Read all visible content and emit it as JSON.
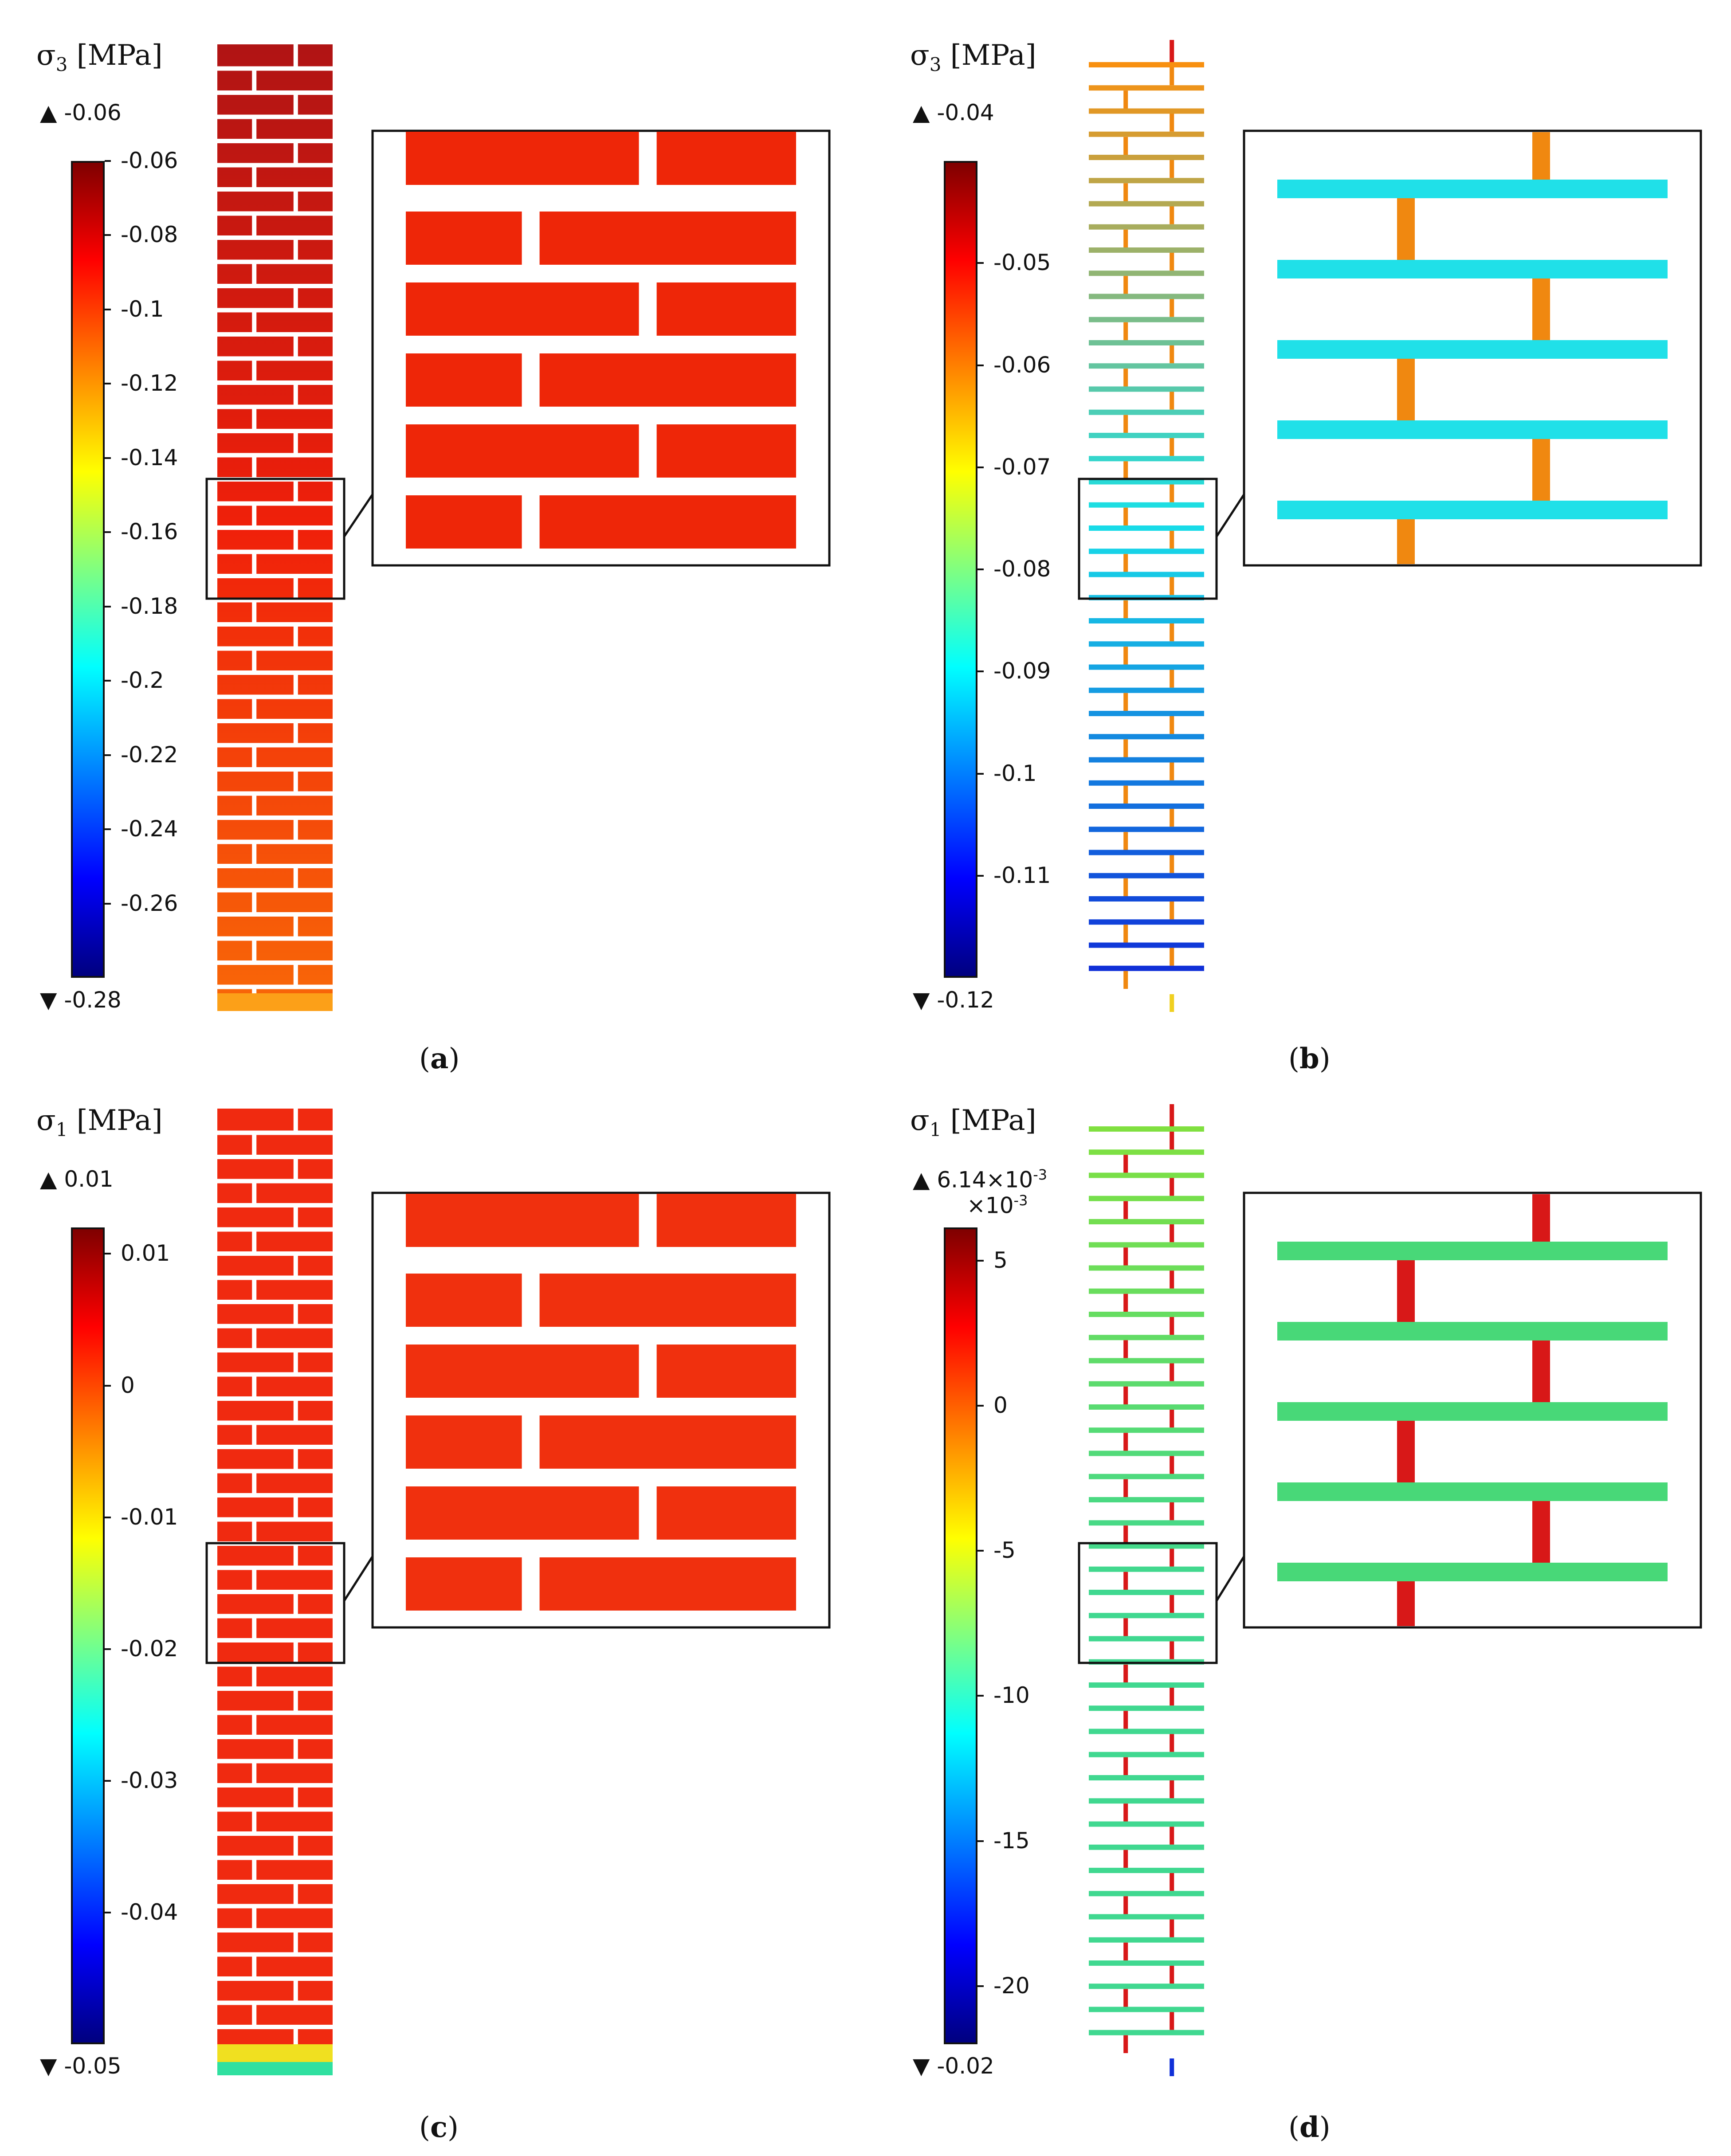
{
  "panels": [
    {
      "id": "a",
      "caption_letter": "a",
      "quantity_symbol": "σ",
      "quantity_sub": "3",
      "unit": "[MPa]",
      "max_label": "-0.06",
      "min_label": "-0.28",
      "multiplier": "",
      "range": [
        -0.28,
        -0.06
      ],
      "ticks": [
        "-0.06",
        "-0.08",
        "-0.1",
        "-0.12",
        "-0.14",
        "-0.16",
        "-0.18",
        "-0.2",
        "-0.22",
        "-0.24",
        "-0.26"
      ],
      "tick_values": [
        -0.06,
        -0.08,
        -0.1,
        -0.12,
        -0.14,
        -0.16,
        -0.18,
        -0.2,
        -0.22,
        -0.24,
        -0.26
      ],
      "model": "solid",
      "fill_top": "#b01414",
      "fill_mid": "#f0200a",
      "fill_bottom": "#f86808",
      "zoom_fill": "#ee2608"
    },
    {
      "id": "b",
      "caption_letter": "b",
      "quantity_symbol": "σ",
      "quantity_sub": "3",
      "unit": "[MPa]",
      "max_label": "-0.04",
      "min_label": "-0.12",
      "multiplier": "",
      "range": [
        -0.12,
        -0.04
      ],
      "ticks": [
        "-0.05",
        "-0.06",
        "-0.07",
        "-0.08",
        "-0.09",
        "-0.1",
        "-0.11"
      ],
      "tick_values": [
        -0.05,
        -0.06,
        -0.07,
        -0.08,
        -0.09,
        -0.1,
        -0.11
      ],
      "model": "frame",
      "fill_top": "#f89010",
      "fill_mid": "#18e0e8",
      "fill_bottom": "#1030d8",
      "joint_color": "#f08810",
      "zoom_fill": "#20e0e8"
    },
    {
      "id": "c",
      "caption_letter": "c",
      "quantity_symbol": "σ",
      "quantity_sub": "1",
      "unit": "[MPa]",
      "max_label": "0.01",
      "min_label": "-0.05",
      "multiplier": "",
      "range": [
        -0.05,
        0.012
      ],
      "ticks": [
        "0.01",
        "0",
        "-0.01",
        "-0.02",
        "-0.03",
        "-0.04"
      ],
      "tick_values": [
        0.01,
        0,
        -0.01,
        -0.02,
        -0.03,
        -0.04
      ],
      "model": "solid",
      "fill_top": "#f02a10",
      "fill_mid": "#f02a10",
      "fill_bottom": "#f02a10",
      "zoom_fill": "#f0300e"
    },
    {
      "id": "d",
      "caption_letter": "d",
      "quantity_symbol": "σ",
      "quantity_sub": "1",
      "unit": "[MPa]",
      "max_label": "6.14×10",
      "max_label_exp": "-3",
      "min_label": "-0.02",
      "multiplier": "×10",
      "multiplier_exp": "-3",
      "range": [
        -22,
        6.14
      ],
      "ticks": [
        "5",
        "0",
        "-5",
        "-10",
        "-15",
        "-20"
      ],
      "tick_values": [
        5,
        0,
        -5,
        -10,
        -15,
        -20
      ],
      "model": "frame",
      "fill_top": "#80e040",
      "fill_mid": "#40d890",
      "fill_bottom": "#40d890",
      "joint_color": "#d81818",
      "zoom_fill": "#48d878"
    }
  ]
}
